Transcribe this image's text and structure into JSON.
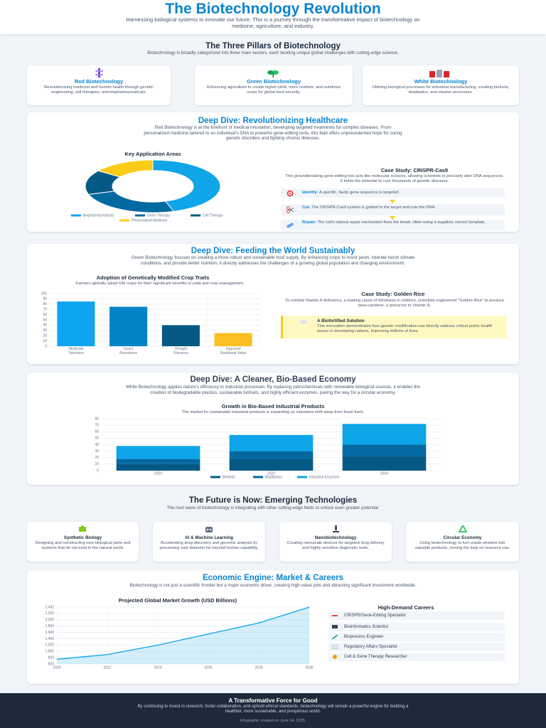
{
  "header": {
    "title": "The Biotechnology Revolution",
    "subtitle": "Harnessing biological systems to innovate our future. This is a journey through the transformative impact of biotechnology on medicine, agriculture, and industry."
  },
  "pillars": {
    "title": "The Three Pillars of Biotechnology",
    "intro": "Biotechnology is broadly categorized into three main sectors, each tackling unique global challenges with cutting-edge science.",
    "cards": [
      {
        "title": "Red Biotechnology",
        "text": "Revolutionizing medicine and human health through genetic engineering, cell therapies, and biopharmaceuticals."
      },
      {
        "title": "Green Biotechnology",
        "text": "Enhancing agriculture to create higher-yield, more resilient, and nutritious crops for global food security."
      },
      {
        "title": "White Biotechnology",
        "text": "Utilizing biological processes for industrial manufacturing, creating biofuels, bioplastics, and cleaner processes."
      }
    ]
  },
  "healthcare": {
    "title": "Deep Dive: Revolutionizing Healthcare",
    "intro": "Red Biotechnology is at the forefront of medical innovation, developing targeted treatments for complex diseases. From personalized medicine tailored to an individual's DNA to powerful gene-editing tools, this field offers unprecedented hope for curing genetic disorders and fighting chronic illnesses.",
    "case_title": "Case Study: CRISPR-Cas9",
    "case_text": "This groundbreaking gene-editing tool acts like molecular scissors, allowing scientists to precisely alter DNA sequences. It holds the potential to cure thousands of genetic diseases.",
    "steps": [
      {
        "label": "Identify:",
        "text": "A specific, faulty gene sequence is targeted."
      },
      {
        "label": "Cut:",
        "text": "The CRISPR-Cas9 system is guided to the target and cuts the DNA."
      },
      {
        "label": "Repair:",
        "text": "The cell's natural repair mechanism fixes the break, often using a supplied, correct template."
      }
    ]
  },
  "agriculture": {
    "title": "Deep Dive: Feeding the World Sustainably",
    "intro": "Green Biotechnology focuses on creating a more robust and sustainable food supply. By enhancing crops to resist pests, tolerate harsh climate conditions, and provide better nutrition, it directly addresses the challenges of a growing global population and changing environment.",
    "case_title": "Case Study: Golden Rice",
    "case_text": "To combat Vitamin A deficiency, a leading cause of blindness in children, scientists engineered \"Golden Rice\" to produce beta-carotene, a precursor to Vitamin A.",
    "callout_title": "A Biofortified Solution",
    "callout_text": "This innovation demonstrates how genetic modification can directly address critical public health issues in developing nations, improving millions of lives."
  },
  "industry": {
    "title": "Deep Dive: A Cleaner, Bio-Based Economy",
    "intro": "White Biotechnology applies nature's efficiency to industrial processes. By replacing petrochemicals with renewable biological sources, it enables the creation of biodegradable plastics, sustainable biofuels, and highly efficient enzymes, paving the way for a circular economy."
  },
  "future": {
    "title": "The Future is Now: Emerging Technologies",
    "intro": "The next wave of biotechnology is integrating with other cutting-edge fields to unlock even greater potential.",
    "cards": [
      {
        "title": "Synthetic Biology",
        "text": "Designing and constructing new biological parts and systems that do not exist in the natural world."
      },
      {
        "title": "AI & Machine Learning",
        "text": "Accelerating drug discovery and genomic analysis by processing vast datasets far beyond human capability."
      },
      {
        "title": "Nanobiotechnology",
        "text": "Creating nanoscale devices for targeted drug delivery and highly sensitive diagnostic tools."
      },
      {
        "title": "Circular Economy",
        "text": "Using biotechnology to turn waste streams into valuable products, closing the loop on resource use."
      }
    ]
  },
  "economy": {
    "title": "Economic Engine: Market & Careers",
    "intro": "Biotechnology is not just a scientific frontier but a major economic driver, creating high-value jobs and attracting significant investment worldwide.",
    "careers_title": "High-Demand Careers",
    "careers": [
      "CRISPR/Gene-Editing Specialist",
      "Bioinformatics Scientist",
      "Bioprocess Engineer",
      "Regulatory Affairs Specialist",
      "Cell & Gene Therapy Researcher"
    ]
  },
  "footer": {
    "title": "A Transformative Force for Good",
    "text": "By continuing to invest in research, foster collaboration, and uphold ethical standards, biotechnology will remain a powerful engine for building a healthier, more sustainable, and prosperous world.",
    "credit": "Infographic created on June 14, 2025."
  },
  "chart_data": [
    {
      "type": "doughnut",
      "title": "Key Application Areas",
      "categories": [
        "Biopharmaceuticals",
        "Gene Therapy",
        "Cell Therapy",
        "Personalized Medicine"
      ],
      "values": [
        45,
        25,
        15,
        15
      ],
      "colors": [
        "#0ea5e9",
        "#0369a1",
        "#075985",
        "#facc15"
      ]
    },
    {
      "type": "bar",
      "title": "Adoption of Genetically Modified Crop Traits",
      "subtitle": "Farmers globally adopt GM crops for their significant benefits in yield and crop management.",
      "categories": [
        "Herbicide Tolerance",
        "Insect Resistance",
        "Drought Tolerance",
        "Improved Nutritional Value"
      ],
      "values": [
        85,
        75,
        40,
        25
      ],
      "colors": [
        "#0ea5f0",
        "#0284c7",
        "#075985",
        "#fbbf24"
      ],
      "ylim": [
        0,
        100
      ],
      "yticks": [
        0,
        10,
        20,
        30,
        40,
        50,
        60,
        70,
        80,
        90,
        100
      ],
      "grid": true
    },
    {
      "type": "stacked_bar",
      "title": "Growth in Bio-Based Industrial Products",
      "subtitle": "The market for sustainable industrial products is expanding as industries shift away from fossil fuels.",
      "categories": [
        "2020",
        "2022",
        "2024"
      ],
      "series": [
        {
          "name": "Biofuels",
          "color": "#075985",
          "values": [
            10,
            18,
            22
          ]
        },
        {
          "name": "Bioplastics",
          "color": "#0369a1",
          "values": [
            8,
            12,
            18
          ]
        },
        {
          "name": "Industrial Enzymes",
          "color": "#0ea5e9",
          "values": [
            20,
            25,
            32
          ]
        }
      ],
      "ylim": [
        0,
        80
      ],
      "yticks": [
        0,
        10,
        20,
        30,
        40,
        50,
        60,
        70,
        80
      ],
      "grid": true
    },
    {
      "type": "line",
      "title": "Projected Global Market Growth (USD Billions)",
      "x": [
        2020,
        2022,
        2024,
        2026,
        2028,
        2030
      ],
      "values": [
        750,
        900,
        1200,
        1550,
        1900,
        2400
      ],
      "color": "#0ea5e9",
      "xlim": [
        2020,
        2030
      ],
      "xticks": [
        2020,
        2022,
        2024,
        2026,
        2028,
        2030
      ],
      "ylim": [
        600,
        2400
      ],
      "yticks": [
        600,
        800,
        {
          "value": 1000,
          "label": "1,000"
        },
        {
          "value": 1200,
          "label": "1,200"
        },
        {
          "value": 1400,
          "label": "1,400"
        },
        {
          "value": 1600,
          "label": "1,600"
        },
        {
          "value": 1800,
          "label": "1,800"
        },
        {
          "value": 2000,
          "label": "2,000"
        },
        {
          "value": 2200,
          "label": "2,200"
        },
        {
          "value": 2400,
          "label": "2,400"
        }
      ],
      "grid": true
    }
  ]
}
